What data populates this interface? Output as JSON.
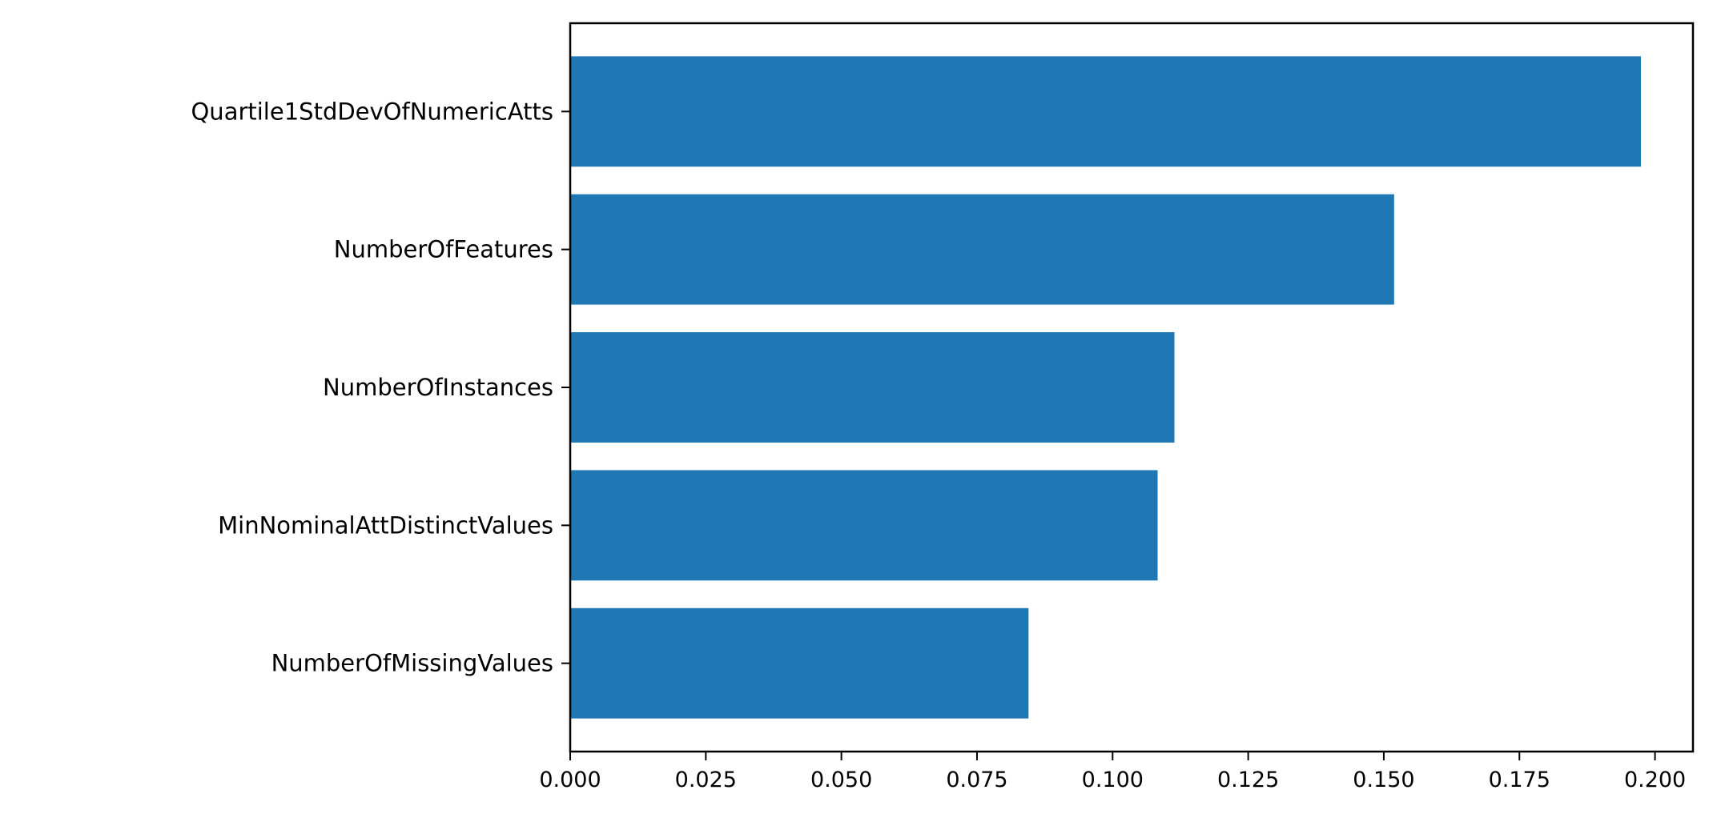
{
  "chart_data": {
    "type": "bar",
    "orientation": "horizontal",
    "title": "",
    "xlabel": "",
    "ylabel": "",
    "categories": [
      "Quartile1StdDevOfNumericAtts",
      "NumberOfFeatures",
      "NumberOfInstances",
      "MinNominalAttDistinctValues",
      "NumberOfMissingValues"
    ],
    "values": [
      0.1974,
      0.1519,
      0.1114,
      0.1083,
      0.0845
    ],
    "xlim": [
      0,
      0.207
    ],
    "xticks": [
      0.0,
      0.025,
      0.05,
      0.075,
      0.1,
      0.125,
      0.15,
      0.175,
      0.2
    ],
    "xtick_labels": [
      "0.000",
      "0.025",
      "0.050",
      "0.075",
      "0.100",
      "0.125",
      "0.150",
      "0.175",
      "0.200"
    ],
    "grid": false,
    "legend": "none",
    "bar_color": "#1f77b4"
  }
}
